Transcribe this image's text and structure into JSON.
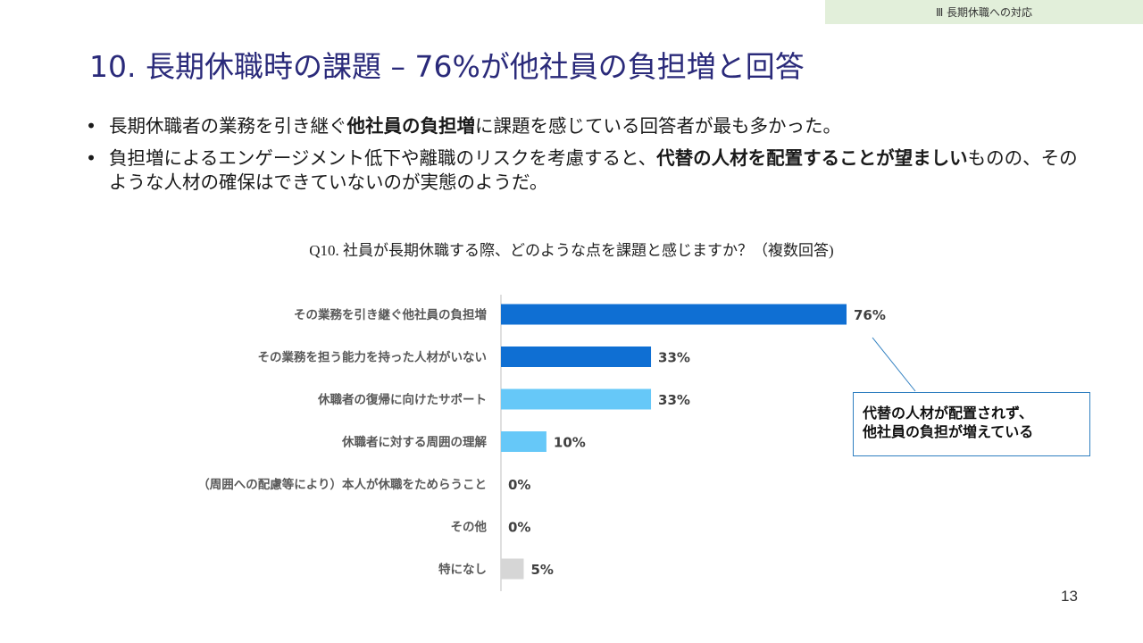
{
  "section_tag": "Ⅲ 長期休職への対応",
  "title": "10. 長期休職時の課題 – 76%が他社員の負担増と回答",
  "bullets": [
    {
      "pre": "長期休職者の業務を引き継ぐ",
      "bold": "他社員の負担増",
      "post": "に課題を感じている回答者が最も多かった。"
    },
    {
      "pre": "負担増によるエンゲージメント低下や離職のリスクを考慮すると、",
      "bold": "代替の人材を配置することが望ましい",
      "post": "ものの、そのような人材の確保はできていないのが実態のようだ。"
    }
  ],
  "bullet_marker": "•",
  "question": "Q10. 社員が長期休職する際、どのような点を課題と感じますか？（複数回答)",
  "callout": {
    "line1": "代替の人材が配置されず、",
    "line2": "他社員の負担が増えている"
  },
  "page_number": "13",
  "colors": {
    "dark_blue": "#0f6fd3",
    "light_blue": "#66c8f8",
    "gray": "#d6d6d6",
    "title": "#2a2a7a",
    "section_tag_bg": "#e2efda",
    "callout_border": "#2f7fc0"
  },
  "chart_data": {
    "type": "bar",
    "orientation": "horizontal",
    "unit": "%",
    "xlim": [
      0,
      100
    ],
    "grid": false,
    "categories": [
      "その業務を引き継ぐ他社員の負担増",
      "その業務を担う能力を持った人材がいない",
      "休職者の復帰に向けたサポート",
      "休職者に対する周囲の理解",
      "（周囲への配慮等により）本人が休職をためらうこと",
      "その他",
      "特になし"
    ],
    "values": [
      76,
      33,
      33,
      10,
      0,
      0,
      5
    ],
    "labels": [
      "76%",
      "33%",
      "33%",
      "10%",
      "0%",
      "0%",
      "5%"
    ],
    "bar_colors": [
      "#0f6fd3",
      "#0f6fd3",
      "#66c8f8",
      "#66c8f8",
      "#66c8f8",
      "#66c8f8",
      "#d6d6d6"
    ]
  }
}
